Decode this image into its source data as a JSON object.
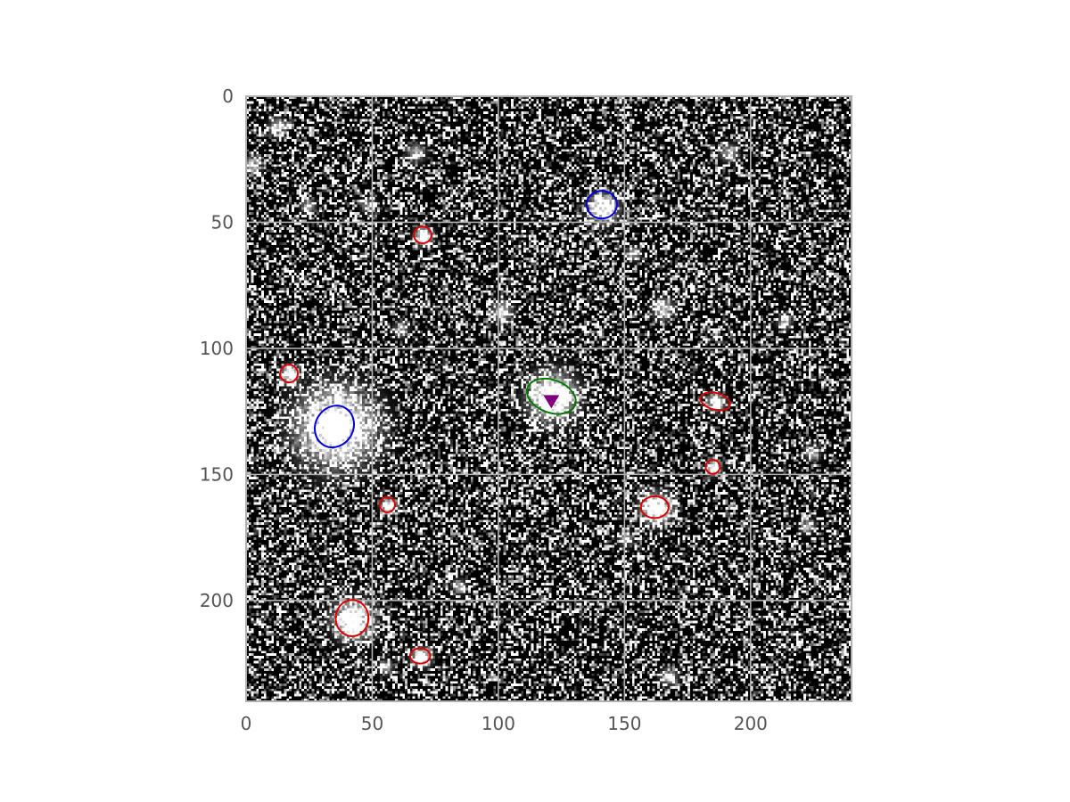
{
  "colors": {
    "background": "#ffffff",
    "image_dark": "#000000",
    "image_bright": "#ffffff",
    "grid": "#b0b0b0",
    "frame": "#b0b0b0",
    "tick_text": "#555555",
    "red_source": "#e00000",
    "blue_source": "#0000e0",
    "green_source": "#007a00",
    "target_marker": "#800080"
  },
  "chart_data": {
    "type": "scatter",
    "description_units": "pixels",
    "xlim": [
      0,
      240
    ],
    "ylim": [
      240,
      0
    ],
    "x_ticks": [
      "0",
      "50",
      "100",
      "150",
      "200"
    ],
    "y_ticks": [
      "0",
      "50",
      "100",
      "150",
      "200"
    ],
    "x_tick_values": [
      0,
      50,
      100,
      150,
      200
    ],
    "y_tick_values": [
      0,
      50,
      100,
      150,
      200
    ],
    "grid": true,
    "sources": {
      "red": [
        {
          "x": 70,
          "y": 55,
          "rx": 3.5,
          "ry": 3.3,
          "angle": 0
        },
        {
          "x": 17,
          "y": 110,
          "rx": 3.5,
          "ry": 3.5,
          "angle": 0
        },
        {
          "x": 186,
          "y": 121,
          "rx": 6,
          "ry": 3.3,
          "angle": 15
        },
        {
          "x": 185,
          "y": 147,
          "rx": 2.8,
          "ry": 2.8,
          "angle": 0
        },
        {
          "x": 56,
          "y": 162,
          "rx": 3,
          "ry": 3,
          "angle": 0
        },
        {
          "x": 162,
          "y": 163,
          "rx": 5.5,
          "ry": 4.3,
          "angle": 0
        },
        {
          "x": 42,
          "y": 207,
          "rx": 6.5,
          "ry": 7.2,
          "angle": 0
        },
        {
          "x": 69,
          "y": 222,
          "rx": 4,
          "ry": 3,
          "angle": 0
        }
      ],
      "blue": [
        {
          "x": 141,
          "y": 43,
          "rx": 6,
          "ry": 5.5,
          "angle": 0
        },
        {
          "x": 35,
          "y": 131,
          "rx": 7.5,
          "ry": 8.5,
          "angle": 30
        }
      ],
      "green": [
        {
          "x": 121,
          "y": 119,
          "rx": 10,
          "ry": 6.5,
          "angle": 20
        }
      ]
    },
    "target": {
      "x": 121,
      "y": 121,
      "marker": "triangle-down"
    },
    "bright_blobs": [
      {
        "x": 35,
        "y": 131,
        "r": 13,
        "i": 1.0
      },
      {
        "x": 42,
        "y": 207,
        "r": 6.5,
        "i": 1.0
      },
      {
        "x": 162,
        "y": 163,
        "r": 5,
        "i": 1.0
      },
      {
        "x": 121,
        "y": 119,
        "r": 8,
        "i": 0.95
      },
      {
        "x": 141,
        "y": 44,
        "r": 5,
        "i": 0.85
      },
      {
        "x": 69,
        "y": 222,
        "r": 3.2,
        "i": 0.95
      },
      {
        "x": 70,
        "y": 55,
        "r": 3,
        "i": 0.9
      },
      {
        "x": 17,
        "y": 110,
        "r": 3,
        "i": 0.9
      },
      {
        "x": 56,
        "y": 162,
        "r": 2.5,
        "i": 0.9
      },
      {
        "x": 185,
        "y": 147,
        "r": 2.5,
        "i": 0.9
      },
      {
        "x": 186,
        "y": 121,
        "r": 3,
        "i": 0.8
      },
      {
        "x": 12,
        "y": 12,
        "r": 3,
        "i": 0.6
      },
      {
        "x": 67,
        "y": 22,
        "r": 3,
        "i": 0.55
      },
      {
        "x": 48,
        "y": 43,
        "r": 2.5,
        "i": 0.5
      },
      {
        "x": 24,
        "y": 43,
        "r": 2.5,
        "i": 0.5
      },
      {
        "x": 101,
        "y": 85,
        "r": 3.5,
        "i": 0.6
      },
      {
        "x": 61,
        "y": 92,
        "r": 2.5,
        "i": 0.55
      },
      {
        "x": 165,
        "y": 84,
        "r": 3.5,
        "i": 0.65
      },
      {
        "x": 213,
        "y": 89,
        "r": 2.5,
        "i": 0.55
      },
      {
        "x": 191,
        "y": 22,
        "r": 3,
        "i": 0.55
      },
      {
        "x": 153,
        "y": 62,
        "r": 2.5,
        "i": 0.5
      },
      {
        "x": 224,
        "y": 141,
        "r": 2.5,
        "i": 0.55
      },
      {
        "x": 150,
        "y": 175,
        "r": 2.5,
        "i": 0.5
      },
      {
        "x": 84,
        "y": 194,
        "r": 2.5,
        "i": 0.5
      },
      {
        "x": 167,
        "y": 230,
        "r": 3,
        "i": 0.55
      },
      {
        "x": 55,
        "y": 226,
        "r": 2.5,
        "i": 0.5
      },
      {
        "x": 222,
        "y": 170,
        "r": 2.5,
        "i": 0.5
      },
      {
        "x": 2,
        "y": 27,
        "r": 3,
        "i": 0.6
      }
    ],
    "noise": {
      "seed": 7,
      "pixel_count": 240,
      "bright_fraction": 0.32
    }
  }
}
